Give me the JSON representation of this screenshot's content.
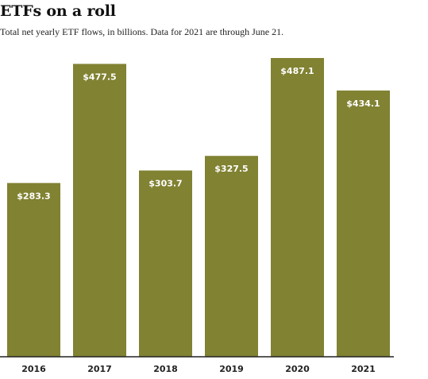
{
  "header": {
    "title": "ETFs on a roll",
    "subtitle": "Total net yearly ETF flows, in billions. Data for 2021 are through June 21."
  },
  "colors": {
    "bar": "#818232",
    "axis": "#222222",
    "label": "#ffffff"
  },
  "chart_data": {
    "type": "bar",
    "title": "ETFs on a roll",
    "subtitle": "Total net yearly ETF flows, in billions. Data for 2021 are through June 21.",
    "categories": [
      "2016",
      "2017",
      "2018",
      "2019",
      "2020",
      "2021"
    ],
    "values": [
      283.3,
      477.5,
      303.7,
      327.5,
      487.1,
      434.1
    ],
    "value_labels": [
      "$283.3",
      "$477.5",
      "$303.7",
      "$327.5",
      "$487.1",
      "$434.1"
    ],
    "xlabel": "",
    "ylabel": "",
    "ylim": [
      0,
      487.1
    ],
    "grid": false,
    "legend": "none"
  }
}
